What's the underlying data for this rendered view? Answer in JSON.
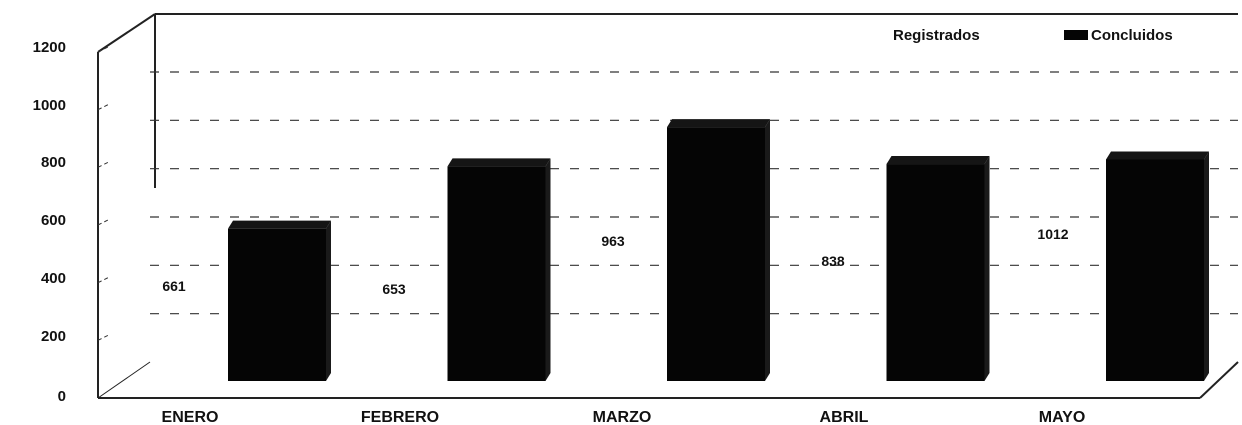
{
  "chart_data": {
    "type": "bar",
    "categories": [
      "ENERO",
      "FEBRERO",
      "MARZO",
      "ABRIL",
      "MAYO"
    ],
    "series": [
      {
        "name": "Registrados",
        "values": [
          661,
          653,
          963,
          838,
          1012
        ],
        "labels": [
          "661",
          "653",
          "963",
          "838",
          "1012"
        ]
      },
      {
        "name": "Concluidos",
        "values": [
          660,
          930,
          1100,
          940,
          960
        ],
        "labels": [
          "",
          "",
          "",
          "",
          ""
        ]
      }
    ],
    "yticks": [
      "0",
      "200",
      "400",
      "600",
      "800",
      "1000",
      "1200"
    ],
    "ylim": [
      0,
      1200
    ],
    "grid": true,
    "legend": "top-right",
    "three_d": true,
    "colors": {
      "concluidos": "#050505",
      "registrados": "#ffffff",
      "grid": "#333333"
    }
  }
}
